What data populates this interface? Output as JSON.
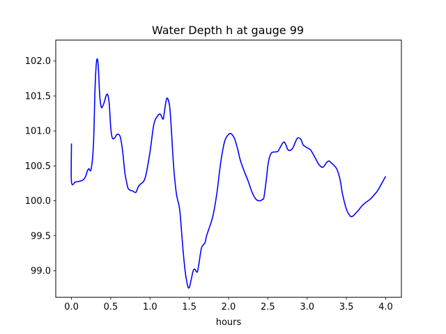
{
  "chart_data": {
    "type": "line",
    "title": "Water Depth h at gauge 99",
    "xlabel": "hours",
    "ylabel": "",
    "xlim": [
      -0.2,
      4.2
    ],
    "ylim": [
      98.62,
      102.3
    ],
    "xticks": [
      0.0,
      0.5,
      1.0,
      1.5,
      2.0,
      2.5,
      3.0,
      3.5,
      4.0
    ],
    "xtick_labels": [
      "0.0",
      "0.5",
      "1.0",
      "1.5",
      "2.0",
      "2.5",
      "3.0",
      "3.5",
      "4.0"
    ],
    "yticks": [
      99.0,
      99.5,
      100.0,
      100.5,
      101.0,
      101.5,
      102.0
    ],
    "ytick_labels": [
      "99.0",
      "99.5",
      "100.0",
      "100.5",
      "101.0",
      "101.5",
      "102.0"
    ],
    "grid": false,
    "legend": "none",
    "series": [
      {
        "color": "#0000ff",
        "x": [
          0.0,
          0.0,
          0.05,
          0.1,
          0.15,
          0.18,
          0.2,
          0.22,
          0.25,
          0.28,
          0.3,
          0.32,
          0.34,
          0.36,
          0.38,
          0.4,
          0.42,
          0.44,
          0.46,
          0.48,
          0.5,
          0.52,
          0.55,
          0.58,
          0.62,
          0.65,
          0.68,
          0.7,
          0.72,
          0.75,
          0.78,
          0.82,
          0.85,
          0.88,
          0.92,
          0.95,
          1.0,
          1.05,
          1.1,
          1.13,
          1.15,
          1.17,
          1.2,
          1.22,
          1.25,
          1.27,
          1.3,
          1.33,
          1.35,
          1.38,
          1.42,
          1.45,
          1.48,
          1.5,
          1.52,
          1.55,
          1.57,
          1.6,
          1.62,
          1.65,
          1.67,
          1.7,
          1.72,
          1.75,
          1.8,
          1.85,
          1.9,
          1.95,
          2.0,
          2.03,
          2.05,
          2.08,
          2.12,
          2.15,
          2.2,
          2.25,
          2.3,
          2.35,
          2.4,
          2.43,
          2.45,
          2.48,
          2.5,
          2.52,
          2.55,
          2.6,
          2.63,
          2.65,
          2.7,
          2.73,
          2.75,
          2.78,
          2.82,
          2.85,
          2.88,
          2.92,
          2.95,
          3.0,
          3.03,
          3.05,
          3.1,
          3.15,
          3.2,
          3.25,
          3.28,
          3.3,
          3.33,
          3.38,
          3.42,
          3.45,
          3.5,
          3.55,
          3.58,
          3.6,
          3.65,
          3.7,
          3.75,
          3.8,
          3.85,
          3.9,
          3.95,
          4.0
        ],
        "y": [
          100.82,
          100.27,
          100.27,
          100.28,
          100.3,
          100.35,
          100.42,
          100.46,
          100.45,
          100.8,
          101.6,
          102.0,
          101.95,
          101.5,
          101.34,
          101.36,
          101.42,
          101.5,
          101.52,
          101.4,
          101.05,
          100.9,
          100.9,
          100.95,
          100.92,
          100.72,
          100.4,
          100.28,
          100.18,
          100.15,
          100.14,
          100.12,
          100.2,
          100.24,
          100.28,
          100.38,
          100.7,
          101.1,
          101.22,
          101.24,
          101.2,
          101.18,
          101.4,
          101.47,
          101.35,
          101.05,
          100.5,
          100.15,
          100.02,
          99.85,
          99.3,
          98.97,
          98.78,
          98.76,
          98.85,
          99.0,
          99.02,
          98.98,
          99.08,
          99.3,
          99.36,
          99.4,
          99.5,
          99.6,
          99.78,
          100.1,
          100.55,
          100.85,
          100.95,
          100.96,
          100.94,
          100.88,
          100.72,
          100.58,
          100.42,
          100.28,
          100.12,
          100.02,
          100.0,
          100.02,
          100.05,
          100.3,
          100.5,
          100.62,
          100.69,
          100.7,
          100.71,
          100.75,
          100.84,
          100.8,
          100.74,
          100.72,
          100.76,
          100.84,
          100.9,
          100.88,
          100.8,
          100.76,
          100.74,
          100.72,
          100.62,
          100.52,
          100.48,
          100.55,
          100.57,
          100.55,
          100.52,
          100.45,
          100.3,
          100.1,
          99.88,
          99.78,
          99.78,
          99.8,
          99.86,
          99.93,
          99.98,
          100.02,
          100.08,
          100.15,
          100.25,
          100.35
        ]
      }
    ]
  }
}
